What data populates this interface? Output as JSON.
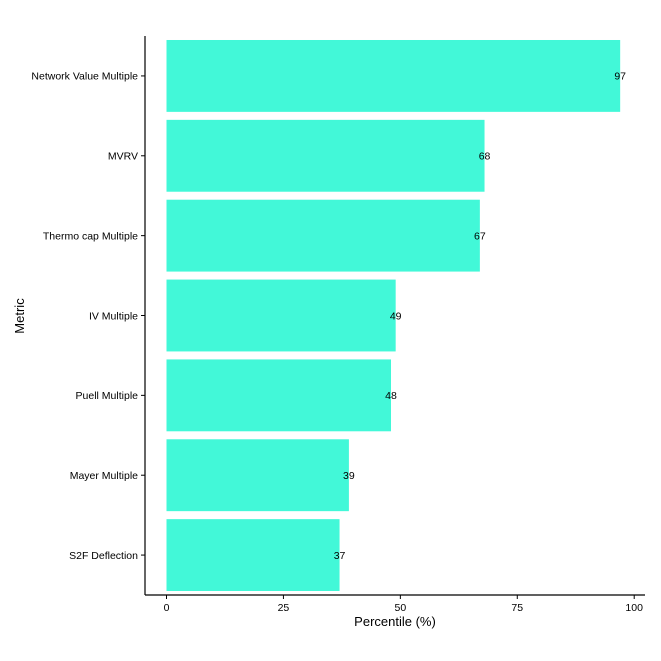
{
  "chart_data": {
    "type": "bar",
    "orientation": "horizontal",
    "categories": [
      "Network Value Multiple",
      "MVRV",
      "Thermo cap Multiple",
      "IV Multiple",
      "Puell Multiple",
      "Mayer Multiple",
      "S2F Deflection"
    ],
    "values": [
      97,
      68,
      67,
      49,
      48,
      39,
      37
    ],
    "data_labels": [
      "97",
      "68",
      "67",
      "49",
      "48",
      "39",
      "37"
    ],
    "xlabel": "Percentile (%)",
    "ylabel": "Metric",
    "xlim": [
      0,
      100
    ],
    "x_ticks": [
      0,
      25,
      50,
      75,
      100
    ],
    "x_tick_labels": [
      "0",
      "25",
      "50",
      "75",
      "100"
    ],
    "grid": false,
    "legend": "none",
    "bar_color": "#42F8D8"
  }
}
